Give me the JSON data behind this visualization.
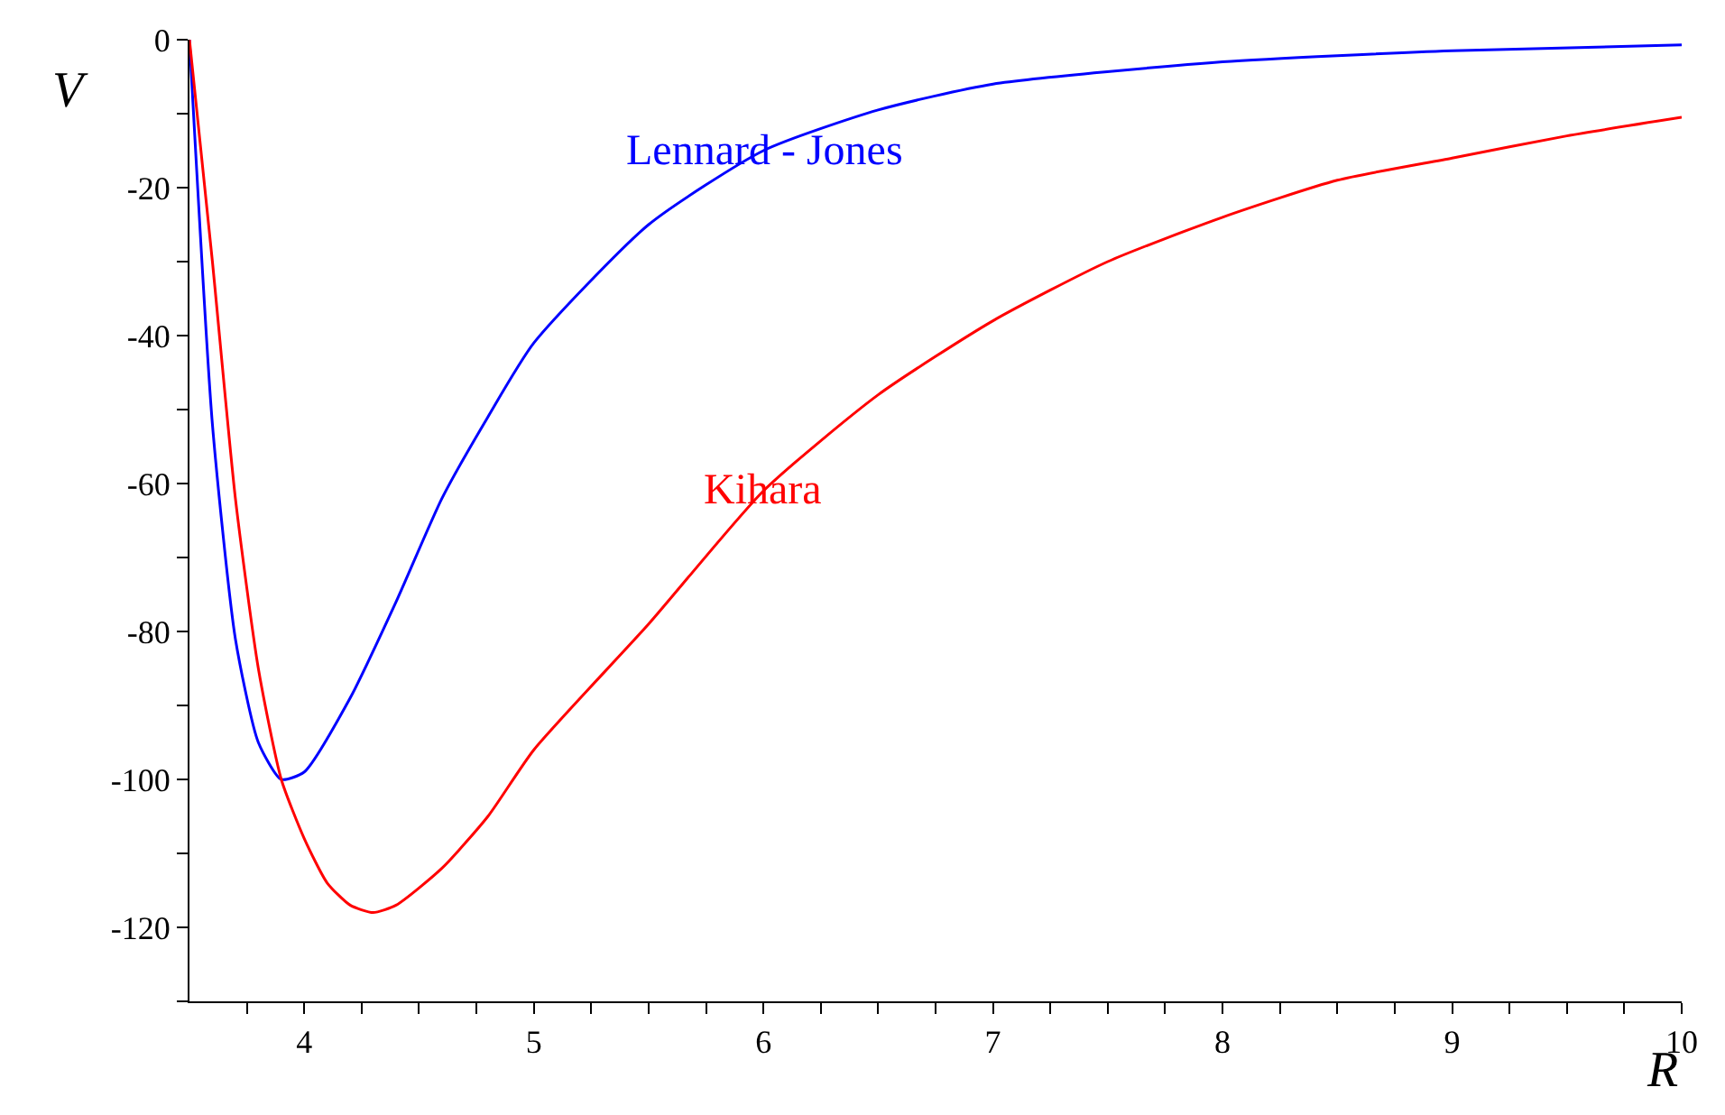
{
  "chart_data": {
    "type": "line",
    "xlabel": "R",
    "ylabel": "V",
    "series": [
      {
        "name": "Lennard - Jones",
        "color": "#0000ff",
        "x": [
          3.5,
          3.6,
          3.7,
          3.8,
          3.9,
          4.0,
          4.2,
          4.4,
          4.6,
          4.8,
          5.0,
          5.5,
          6.0,
          6.5,
          7.0,
          8.0,
          9.0,
          10.0
        ],
        "values": [
          0,
          -52,
          -81,
          -95,
          -100,
          -99,
          -89,
          -76,
          -62,
          -51,
          -41,
          -25,
          -15,
          -9.5,
          -6,
          -3,
          -1.5,
          -0.7
        ]
      },
      {
        "name": "Kihara",
        "color": "#ff0000",
        "x": [
          3.5,
          3.6,
          3.7,
          3.8,
          3.9,
          4.0,
          4.1,
          4.2,
          4.3,
          4.4,
          4.6,
          4.8,
          5.0,
          5.5,
          6.0,
          6.5,
          7.0,
          7.5,
          8.0,
          8.5,
          9.0,
          9.5,
          10.0
        ],
        "values": [
          0,
          -30,
          -62,
          -85,
          -100,
          -108,
          -114,
          -117,
          -118,
          -117,
          -112,
          -105,
          -96,
          -79,
          -61,
          -48,
          -38,
          -30,
          -24,
          -19,
          -16,
          -13,
          -10.5
        ]
      }
    ],
    "xlim": [
      3.5,
      10
    ],
    "ylim": [
      -130,
      0
    ],
    "xticks": [
      4,
      5,
      6,
      7,
      8,
      9,
      10,
      {
        "value": 3.75,
        "label": null
      },
      {
        "value": 4.25,
        "label": null
      },
      {
        "value": 4.5,
        "label": null
      },
      {
        "value": 4.75,
        "label": null
      },
      {
        "value": 5.25,
        "label": null
      },
      {
        "value": 5.5,
        "label": null
      },
      {
        "value": 5.75,
        "label": null
      },
      {
        "value": 6.25,
        "label": null
      },
      {
        "value": 6.5,
        "label": null
      },
      {
        "value": 6.75,
        "label": null
      },
      {
        "value": 7.25,
        "label": null
      },
      {
        "value": 7.5,
        "label": null
      },
      {
        "value": 7.75,
        "label": null
      },
      {
        "value": 8.25,
        "label": null
      },
      {
        "value": 8.5,
        "label": null
      },
      {
        "value": 8.75,
        "label": null
      },
      {
        "value": 9.25,
        "label": null
      },
      {
        "value": 9.5,
        "label": null
      },
      {
        "value": 9.75,
        "label": null
      }
    ],
    "yticks": [
      0,
      -20,
      -40,
      -60,
      -80,
      -100,
      -120,
      {
        "value": -10,
        "label": null
      },
      {
        "value": -30,
        "label": null
      },
      {
        "value": -50,
        "label": null
      },
      {
        "value": -70,
        "label": null
      },
      {
        "value": -90,
        "label": null
      },
      {
        "value": -110,
        "label": null
      },
      {
        "value": -130,
        "label": null
      }
    ],
    "legend": false,
    "marker": "none",
    "line_style": "solid"
  }
}
